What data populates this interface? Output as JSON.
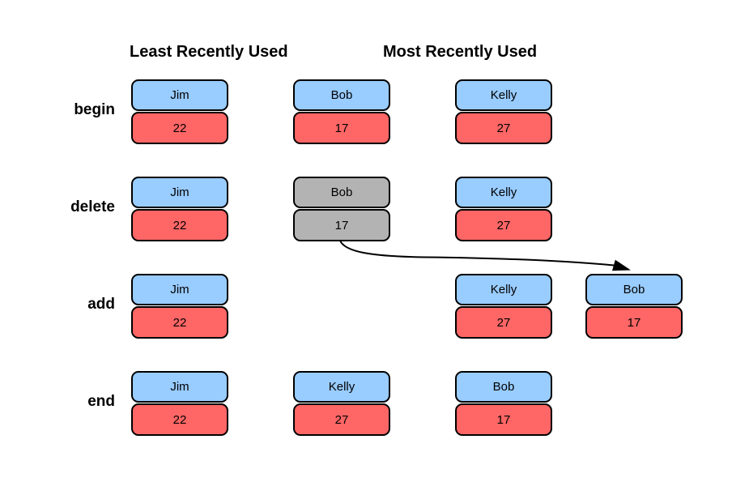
{
  "diagram": {
    "headers": [
      {
        "label": "Least Recently Used"
      },
      {
        "label": "Most Recently Used"
      }
    ],
    "rows": [
      {
        "label": "begin",
        "cells": [
          {
            "col": 0,
            "key": "Jim",
            "value": "22",
            "deleted": false
          },
          {
            "col": 1,
            "key": "Bob",
            "value": "17",
            "deleted": false
          },
          {
            "col": 2,
            "key": "Kelly",
            "value": "27",
            "deleted": false
          }
        ]
      },
      {
        "label": "delete",
        "cells": [
          {
            "col": 0,
            "key": "Jim",
            "value": "22",
            "deleted": false
          },
          {
            "col": 1,
            "key": "Bob",
            "value": "17",
            "deleted": true
          },
          {
            "col": 2,
            "key": "Kelly",
            "value": "27",
            "deleted": false
          }
        ]
      },
      {
        "label": "add",
        "cells": [
          {
            "col": 0,
            "key": "Jim",
            "value": "22",
            "deleted": false
          },
          {
            "col": 2,
            "key": "Kelly",
            "value": "27",
            "deleted": false
          },
          {
            "col": 3,
            "key": "Bob",
            "value": "17",
            "deleted": false
          }
        ]
      },
      {
        "label": "end",
        "cells": [
          {
            "col": 0,
            "key": "Jim",
            "value": "22",
            "deleted": false
          },
          {
            "col": 1,
            "key": "Kelly",
            "value": "27",
            "deleted": false
          },
          {
            "col": 2,
            "key": "Bob",
            "value": "17",
            "deleted": false
          }
        ]
      }
    ],
    "arrow": {
      "from": "delete-row Bob/17",
      "to": "add-row Bob/17"
    },
    "colors": {
      "key_fill": "#99CCFF",
      "value_fill": "#FF6666",
      "deleted_fill": "#B3B3B3",
      "line": "#000000",
      "background": "#FFFFFF"
    }
  }
}
